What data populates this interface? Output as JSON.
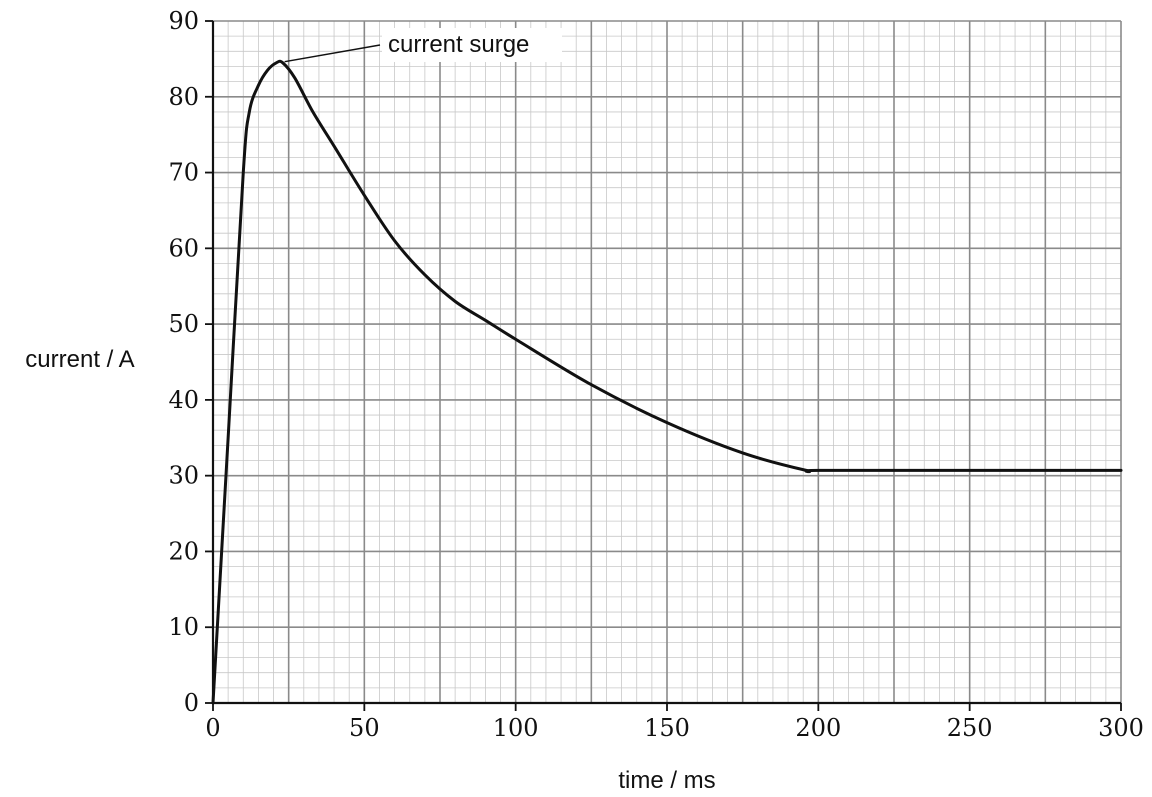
{
  "chart_data": {
    "type": "line",
    "title": "",
    "xlabel": "time / ms",
    "ylabel": "current / A",
    "xlim": [
      0,
      300
    ],
    "ylim": [
      0,
      90
    ],
    "x_ticks": [
      "0",
      "50",
      "100",
      "150",
      "200",
      "250",
      "300"
    ],
    "y_ticks": [
      "0",
      "10",
      "20",
      "30",
      "40",
      "50",
      "60",
      "70",
      "80",
      "90"
    ],
    "grid": true,
    "legend": "none",
    "series": [
      {
        "x": [
          0,
          5,
          10,
          12,
          15,
          18,
          21,
          23,
          27,
          33,
          40,
          50,
          60,
          70,
          80,
          90,
          100,
          125,
          150,
          175,
          196,
          200,
          250,
          300
        ],
        "y": [
          0,
          35,
          70,
          78,
          81.5,
          83.5,
          84.5,
          84.5,
          82.5,
          78,
          73.5,
          67,
          61,
          56.5,
          53,
          50.5,
          48,
          42,
          37,
          33,
          30.7,
          30.7,
          30.7,
          30.7
        ]
      }
    ],
    "annotations": [
      {
        "text": "current surge",
        "x": 23,
        "y": 84.5
      }
    ]
  }
}
